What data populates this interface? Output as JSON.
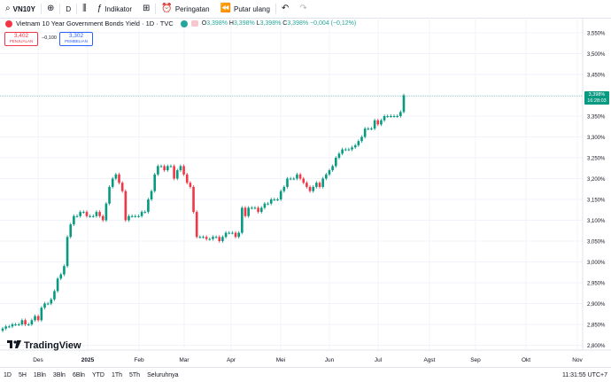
{
  "toolbar": {
    "symbol": "VN10Y",
    "interval": "D",
    "indicators_label": "Indikator",
    "alerts_label": "Peringatan",
    "replay_label": "Putar ulang"
  },
  "legend": {
    "title": "Vietnam 10 Year Government Bonds Yield · 1D · TVC",
    "ohlc": [
      {
        "k": "O",
        "v": "3,398%"
      },
      {
        "k": "H",
        "v": "3,398%"
      },
      {
        "k": "L",
        "v": "3,398%"
      },
      {
        "k": "C",
        "v": "3,398%"
      }
    ],
    "change": "−0,004 (−0,12%)"
  },
  "trade": {
    "sell_value": "3,402",
    "sell_label": "PENJUALAN",
    "spread": "−0,100",
    "buy_value": "3,302",
    "buy_label": "PEMBELIAN"
  },
  "price_tag": {
    "value": "3,398%",
    "countdown": "16:28:03"
  },
  "brand": "TradingView",
  "bottom": {
    "ranges": [
      "1D",
      "5H",
      "1Bln",
      "3Bln",
      "6Bln",
      "YTD",
      "1Th",
      "5Th",
      "Seluruhnya"
    ],
    "clock": "11:31:55 UTC+7"
  },
  "colors": {
    "up": "#089981",
    "down": "#f23645",
    "wick": "#131722",
    "grid": "#f0f3fa",
    "last": "#089981"
  },
  "chart_data": {
    "type": "candlestick",
    "y_ticks": [
      "3,550%",
      "3,500%",
      "3,450%",
      "3,400%",
      "3,350%",
      "3,300%",
      "3,250%",
      "3,200%",
      "3,150%",
      "3,100%",
      "3,050%",
      "3,000%",
      "2,950%",
      "2,900%",
      "2,850%",
      "2,800%"
    ],
    "x_ticks": [
      "Des",
      "2025",
      "Feb",
      "Mar",
      "Apr",
      "Mei",
      "Jun",
      "Jul",
      "Agst",
      "Sep",
      "Okt",
      "Nov"
    ],
    "ylim": [
      2.78,
      3.56
    ],
    "last_value": 3.398,
    "closes": [
      2.84,
      2.845,
      2.845,
      2.85,
      2.85,
      2.85,
      2.86,
      2.85,
      2.85,
      2.86,
      2.87,
      2.86,
      2.89,
      2.9,
      2.9,
      2.91,
      2.93,
      2.96,
      2.97,
      2.99,
      3.06,
      3.09,
      3.11,
      3.11,
      3.12,
      3.12,
      3.11,
      3.11,
      3.11,
      3.12,
      3.11,
      3.1,
      3.14,
      3.18,
      3.2,
      3.21,
      3.19,
      3.17,
      3.1,
      3.11,
      3.11,
      3.11,
      3.11,
      3.12,
      3.12,
      3.15,
      3.17,
      3.21,
      3.23,
      3.23,
      3.22,
      3.23,
      3.23,
      3.2,
      3.22,
      3.23,
      3.21,
      3.19,
      3.18,
      3.12,
      3.06,
      3.06,
      3.06,
      3.055,
      3.055,
      3.06,
      3.06,
      3.05,
      3.06,
      3.07,
      3.07,
      3.07,
      3.06,
      3.07,
      3.13,
      3.11,
      3.13,
      3.13,
      3.13,
      3.12,
      3.13,
      3.14,
      3.14,
      3.15,
      3.15,
      3.15,
      3.17,
      3.18,
      3.2,
      3.2,
      3.2,
      3.21,
      3.2,
      3.19,
      3.18,
      3.17,
      3.18,
      3.19,
      3.18,
      3.2,
      3.21,
      3.22,
      3.23,
      3.25,
      3.26,
      3.27,
      3.27,
      3.27,
      3.275,
      3.28,
      3.29,
      3.3,
      3.32,
      3.32,
      3.32,
      3.34,
      3.33,
      3.34,
      3.35,
      3.35,
      3.35,
      3.35,
      3.35,
      3.36,
      3.4
    ],
    "series": [
      {
        "name": "VN10Y"
      }
    ]
  }
}
